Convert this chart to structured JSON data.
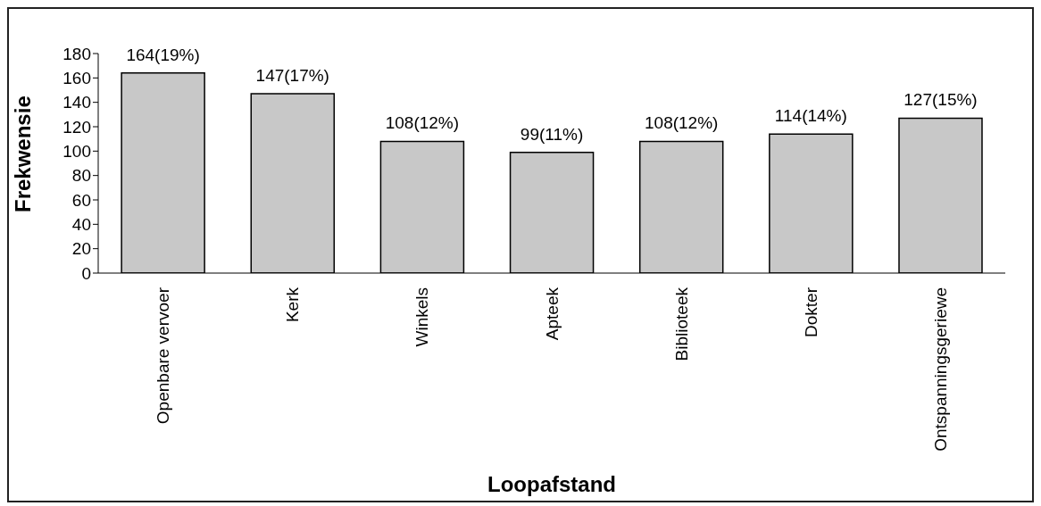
{
  "chart_data": {
    "type": "bar",
    "xlabel": "Loopafstand",
    "ylabel": "Frekwensie",
    "categories": [
      "Openbare vervoer",
      "Kerk",
      "Winkels",
      "Apteek",
      "Biblioteek",
      "Dokter",
      "Ontspanningsgeriewe"
    ],
    "values": [
      164,
      147,
      108,
      99,
      108,
      114,
      127
    ],
    "value_labels": [
      "164(19%)",
      "147(17%)",
      "108(12%)",
      "99(11%)",
      "108(12%)",
      "114(14%)",
      "127(15%)"
    ],
    "color": "#c8c8c8",
    "ylim": [
      0,
      180
    ],
    "yticks": [
      0,
      20,
      40,
      60,
      80,
      100,
      120,
      140,
      160,
      180
    ],
    "grid": false,
    "legend": false
  }
}
